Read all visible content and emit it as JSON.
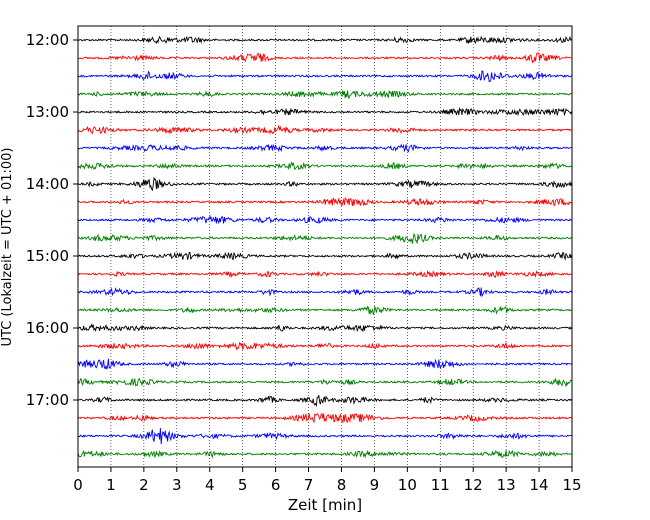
{
  "chart_data": {
    "type": "line",
    "title": "",
    "xlabel": "Zeit  [min]",
    "ylabel": "UTC (Lokalzeit = UTC + 01:00)",
    "xlim": [
      0,
      15
    ],
    "x_ticks": [
      "0",
      "1",
      "2",
      "3",
      "4",
      "5",
      "6",
      "7",
      "8",
      "9",
      "10",
      "11",
      "12",
      "13",
      "14",
      "15"
    ],
    "y_ticks": [
      "12:00",
      "13:00",
      "14:00",
      "15:00",
      "16:00",
      "17:00"
    ],
    "grid": "vertical dotted at each minute",
    "trace_interval_minutes": 15,
    "colors": [
      "#000000",
      "#ff0000",
      "#0000ff",
      "#008000"
    ],
    "series": [
      {
        "start": "12:00",
        "color": "#000000"
      },
      {
        "start": "12:15",
        "color": "#ff0000"
      },
      {
        "start": "12:30",
        "color": "#0000ff"
      },
      {
        "start": "12:45",
        "color": "#008000"
      },
      {
        "start": "13:00",
        "color": "#000000"
      },
      {
        "start": "13:15",
        "color": "#ff0000"
      },
      {
        "start": "13:30",
        "color": "#0000ff"
      },
      {
        "start": "13:45",
        "color": "#008000"
      },
      {
        "start": "14:00",
        "color": "#000000"
      },
      {
        "start": "14:15",
        "color": "#ff0000"
      },
      {
        "start": "14:30",
        "color": "#0000ff"
      },
      {
        "start": "14:45",
        "color": "#008000"
      },
      {
        "start": "15:00",
        "color": "#000000"
      },
      {
        "start": "15:15",
        "color": "#ff0000"
      },
      {
        "start": "15:30",
        "color": "#0000ff"
      },
      {
        "start": "15:45",
        "color": "#008000"
      },
      {
        "start": "16:00",
        "color": "#000000"
      },
      {
        "start": "16:15",
        "color": "#ff0000"
      },
      {
        "start": "16:30",
        "color": "#0000ff"
      },
      {
        "start": "16:45",
        "color": "#008000"
      },
      {
        "start": "17:00",
        "color": "#000000"
      },
      {
        "start": "17:15",
        "color": "#ff0000"
      },
      {
        "start": "17:30",
        "color": "#0000ff"
      },
      {
        "start": "17:45",
        "color": "#008000"
      }
    ]
  }
}
